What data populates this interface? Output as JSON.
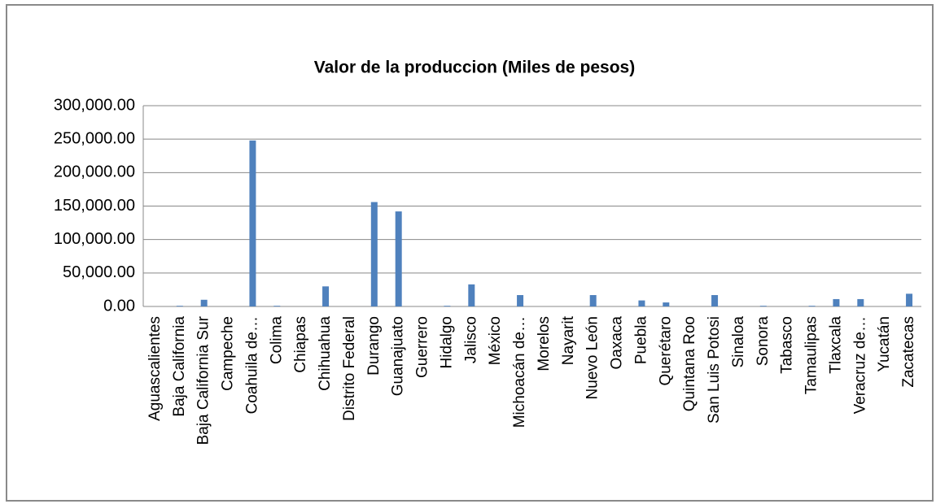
{
  "chart_data": {
    "type": "bar",
    "title": "Valor de la produccion (Miles de pesos)",
    "categories": [
      "Aguascalientes",
      "Baja California",
      "Baja California Sur",
      "Campeche",
      "Coahuila de…",
      "Colima",
      "Chiapas",
      "Chihuahua",
      "Distrito Federal",
      "Durango",
      "Guanajuato",
      "Guerrero",
      "Hidalgo",
      "Jalisco",
      "México",
      "Michoacán de…",
      "Morelos",
      "Nayarit",
      "Nuevo León",
      "Oaxaca",
      "Puebla",
      "Querétaro",
      "Quintana Roo",
      "San Luis Potosi",
      "Sinaloa",
      "Sonora",
      "Tabasco",
      "Tamaulipas",
      "Tlaxcala",
      "Veracruz de…",
      "Yucatán",
      "Zacatecas"
    ],
    "values": [
      0,
      1000,
      10000,
      0,
      248000,
      1000,
      0,
      30000,
      0,
      156000,
      142000,
      0,
      1000,
      33000,
      0,
      17000,
      0,
      0,
      17000,
      0,
      9000,
      6000,
      0,
      17000,
      0,
      1000,
      0,
      1000,
      11000,
      11000,
      0,
      19000
    ],
    "color": "#4f81bd",
    "ylim": [
      0,
      300000
    ],
    "yticks": [
      {
        "value": 0,
        "label": "0.00"
      },
      {
        "value": 50000,
        "label": "50,000.00"
      },
      {
        "value": 100000,
        "label": "100,000.00"
      },
      {
        "value": 150000,
        "label": "150,000.00"
      },
      {
        "value": 200000,
        "label": "200,000.00"
      },
      {
        "value": 250000,
        "label": "250,000.00"
      },
      {
        "value": 300000,
        "label": "300,000.00"
      }
    ],
    "grid": true
  }
}
